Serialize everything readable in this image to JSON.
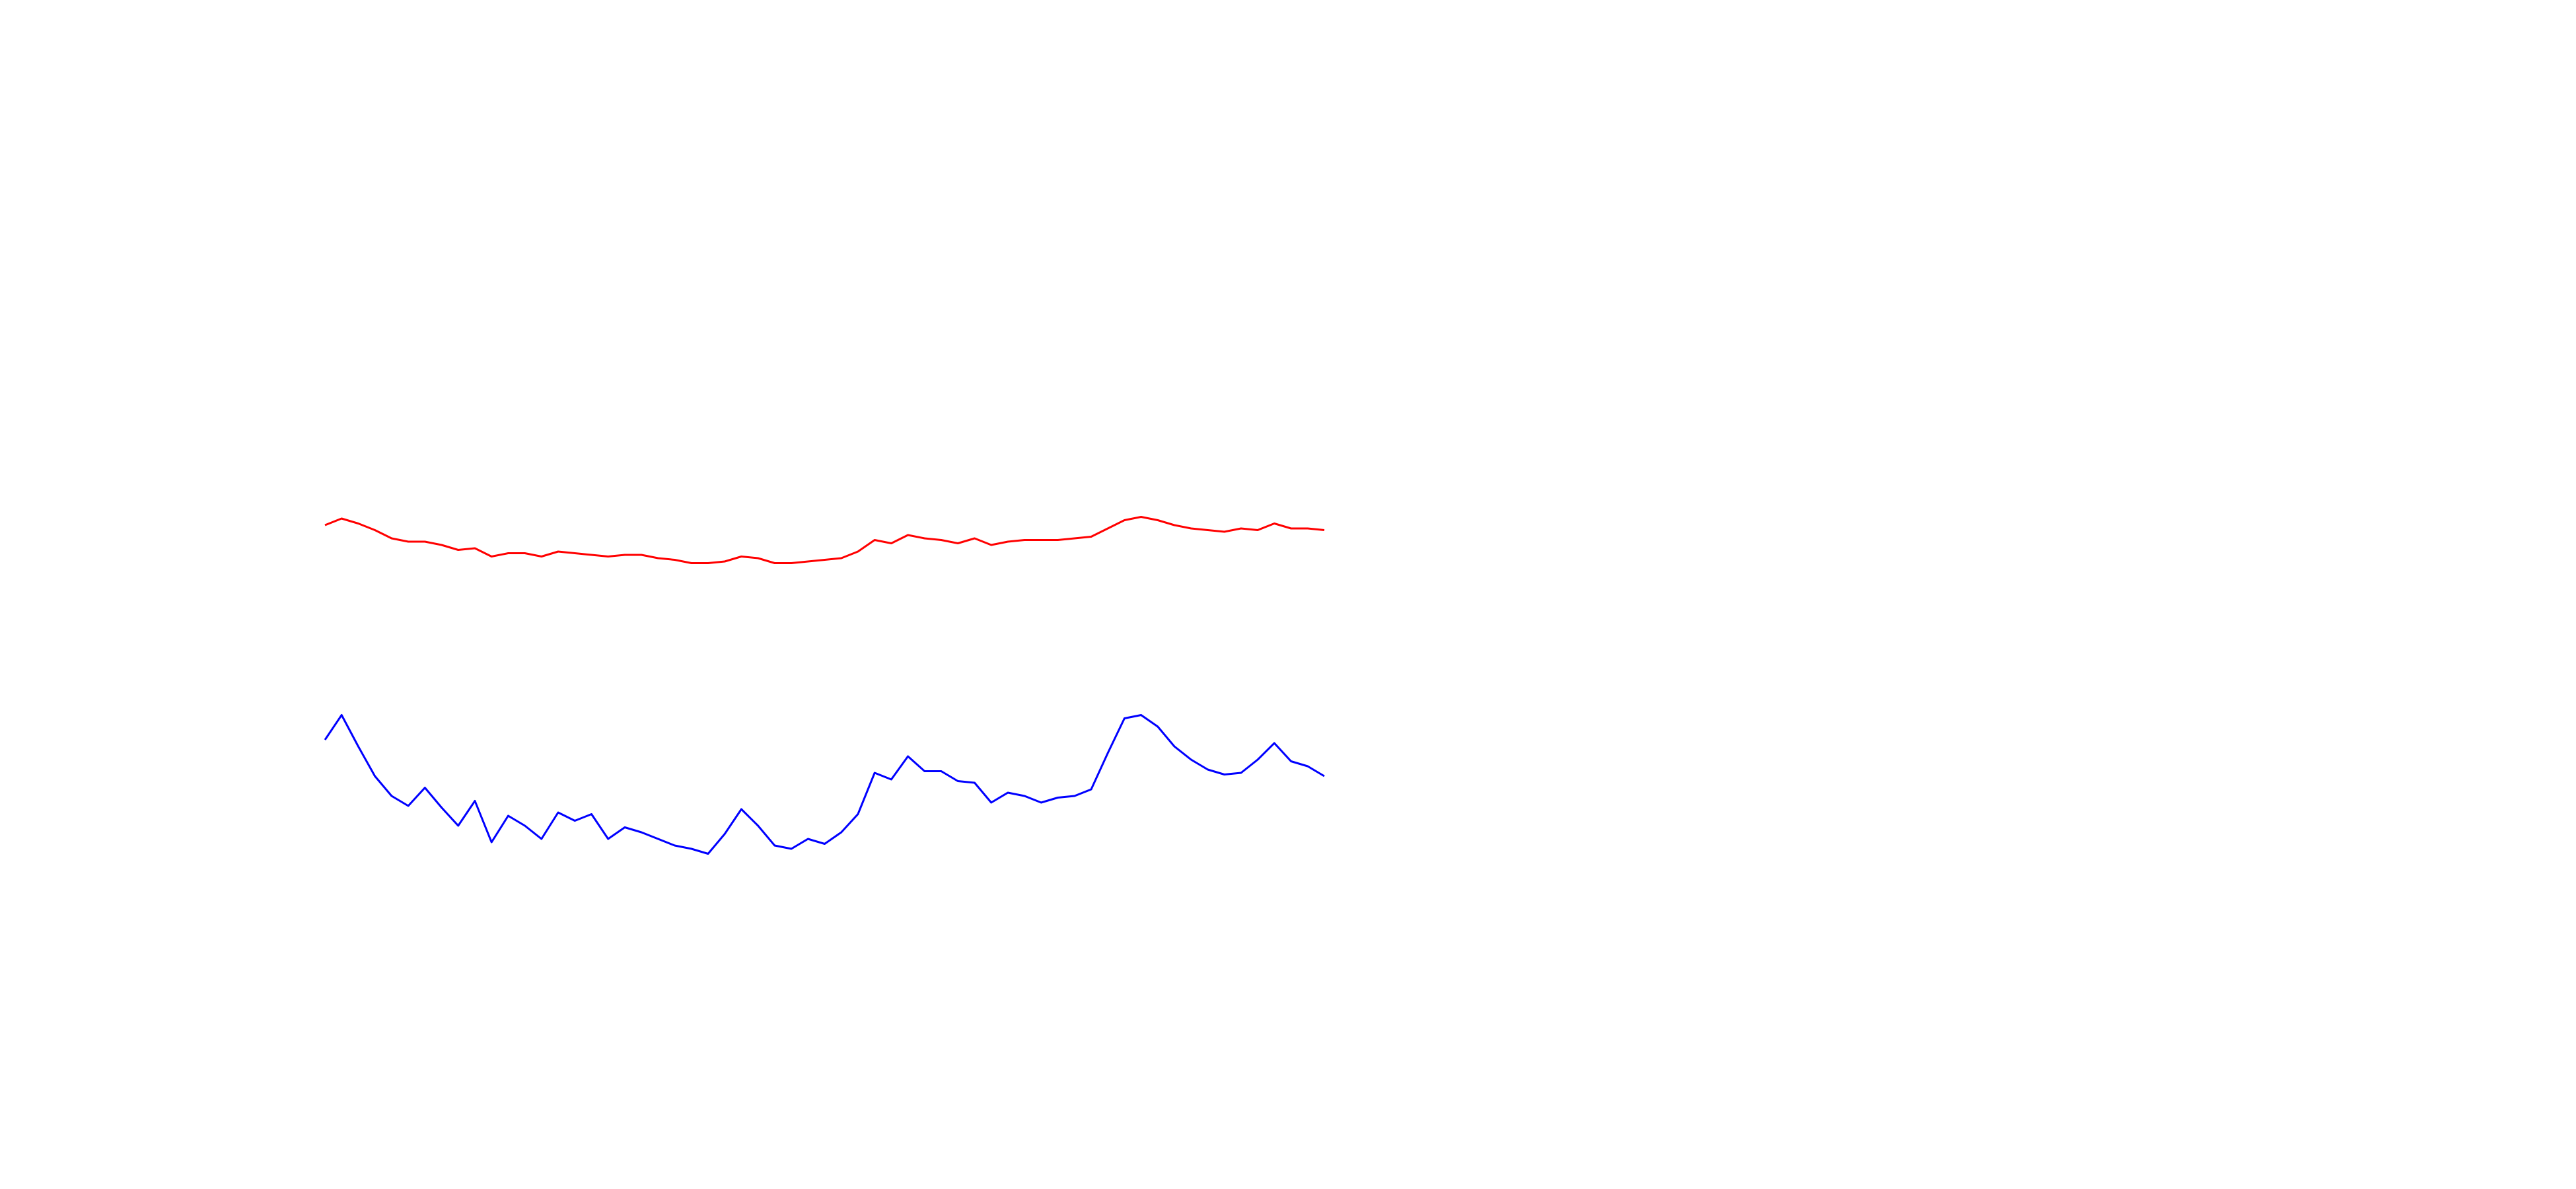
{
  "chart_data": {
    "type": "line",
    "ylim": [
      0,
      720
    ],
    "series": [
      {
        "color": "#ff0000",
        "values": [
          402,
          406,
          403,
          399,
          394,
          392,
          392,
          390,
          387,
          388,
          383,
          385,
          385,
          383,
          386,
          385,
          384,
          383,
          384,
          384,
          382,
          381,
          379,
          379,
          380,
          383,
          382,
          379,
          379,
          380,
          381,
          382,
          386,
          393,
          391,
          396,
          394,
          393,
          391,
          394,
          390,
          392,
          393,
          393,
          393,
          394,
          395,
          400,
          405,
          407,
          405,
          402,
          400,
          399,
          398,
          400,
          399,
          403,
          400,
          400,
          399
        ]
      },
      {
        "color": "#0000ff",
        "values": [
          272,
          287,
          268,
          250,
          238,
          232,
          243,
          231,
          220,
          235,
          210,
          226,
          220,
          212,
          228,
          223,
          227,
          212,
          219,
          216,
          212,
          208,
          206,
          203,
          215,
          230,
          220,
          208,
          206,
          212,
          209,
          216,
          227,
          252,
          248,
          262,
          253,
          253,
          247,
          246,
          234,
          240,
          238,
          234,
          237,
          238,
          242,
          264,
          285,
          287,
          280,
          268,
          260,
          254,
          251,
          252,
          260,
          270,
          259,
          256,
          250
        ]
      }
    ]
  }
}
